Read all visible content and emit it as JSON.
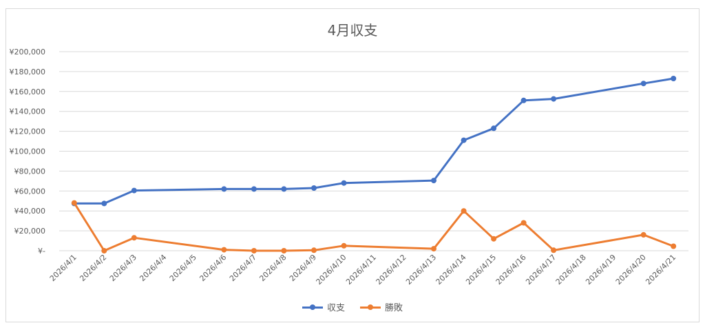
{
  "chart_data": {
    "type": "line",
    "title": "4月収支",
    "xlabel": "",
    "ylabel": "",
    "ylim": [
      0,
      200000
    ],
    "yticks": [
      "¥-",
      "¥20,000",
      "¥40,000",
      "¥60,000",
      "¥80,000",
      "¥100,000",
      "¥120,000",
      "¥140,000",
      "¥160,000",
      "¥180,000",
      "¥200,000"
    ],
    "categories": [
      "2026/4/1",
      "2026/4/2",
      "2026/4/3",
      "2026/4/4",
      "2026/4/5",
      "2026/4/6",
      "2026/4/7",
      "2026/4/8",
      "2026/4/9",
      "2026/4/10",
      "2026/4/11",
      "2026/4/12",
      "2026/4/13",
      "2026/4/14",
      "2026/4/15",
      "2026/4/16",
      "2026/4/17",
      "2026/4/18",
      "2026/4/19",
      "2026/4/20",
      "2026/4/21"
    ],
    "grid": true,
    "legend_position": "bottom",
    "series": [
      {
        "name": "収支",
        "color": "#4472C4",
        "values": [
          47500,
          47500,
          60500,
          null,
          null,
          62000,
          62000,
          62000,
          63000,
          68000,
          null,
          null,
          70500,
          111000,
          123000,
          151000,
          152500,
          null,
          null,
          168000,
          173000
        ]
      },
      {
        "name": "勝敗",
        "color": "#ED7D31",
        "values": [
          48000,
          0,
          13000,
          null,
          null,
          1000,
          0,
          0,
          500,
          5000,
          null,
          null,
          2000,
          40000,
          12000,
          28000,
          500,
          null,
          null,
          16000,
          4500
        ]
      }
    ]
  }
}
